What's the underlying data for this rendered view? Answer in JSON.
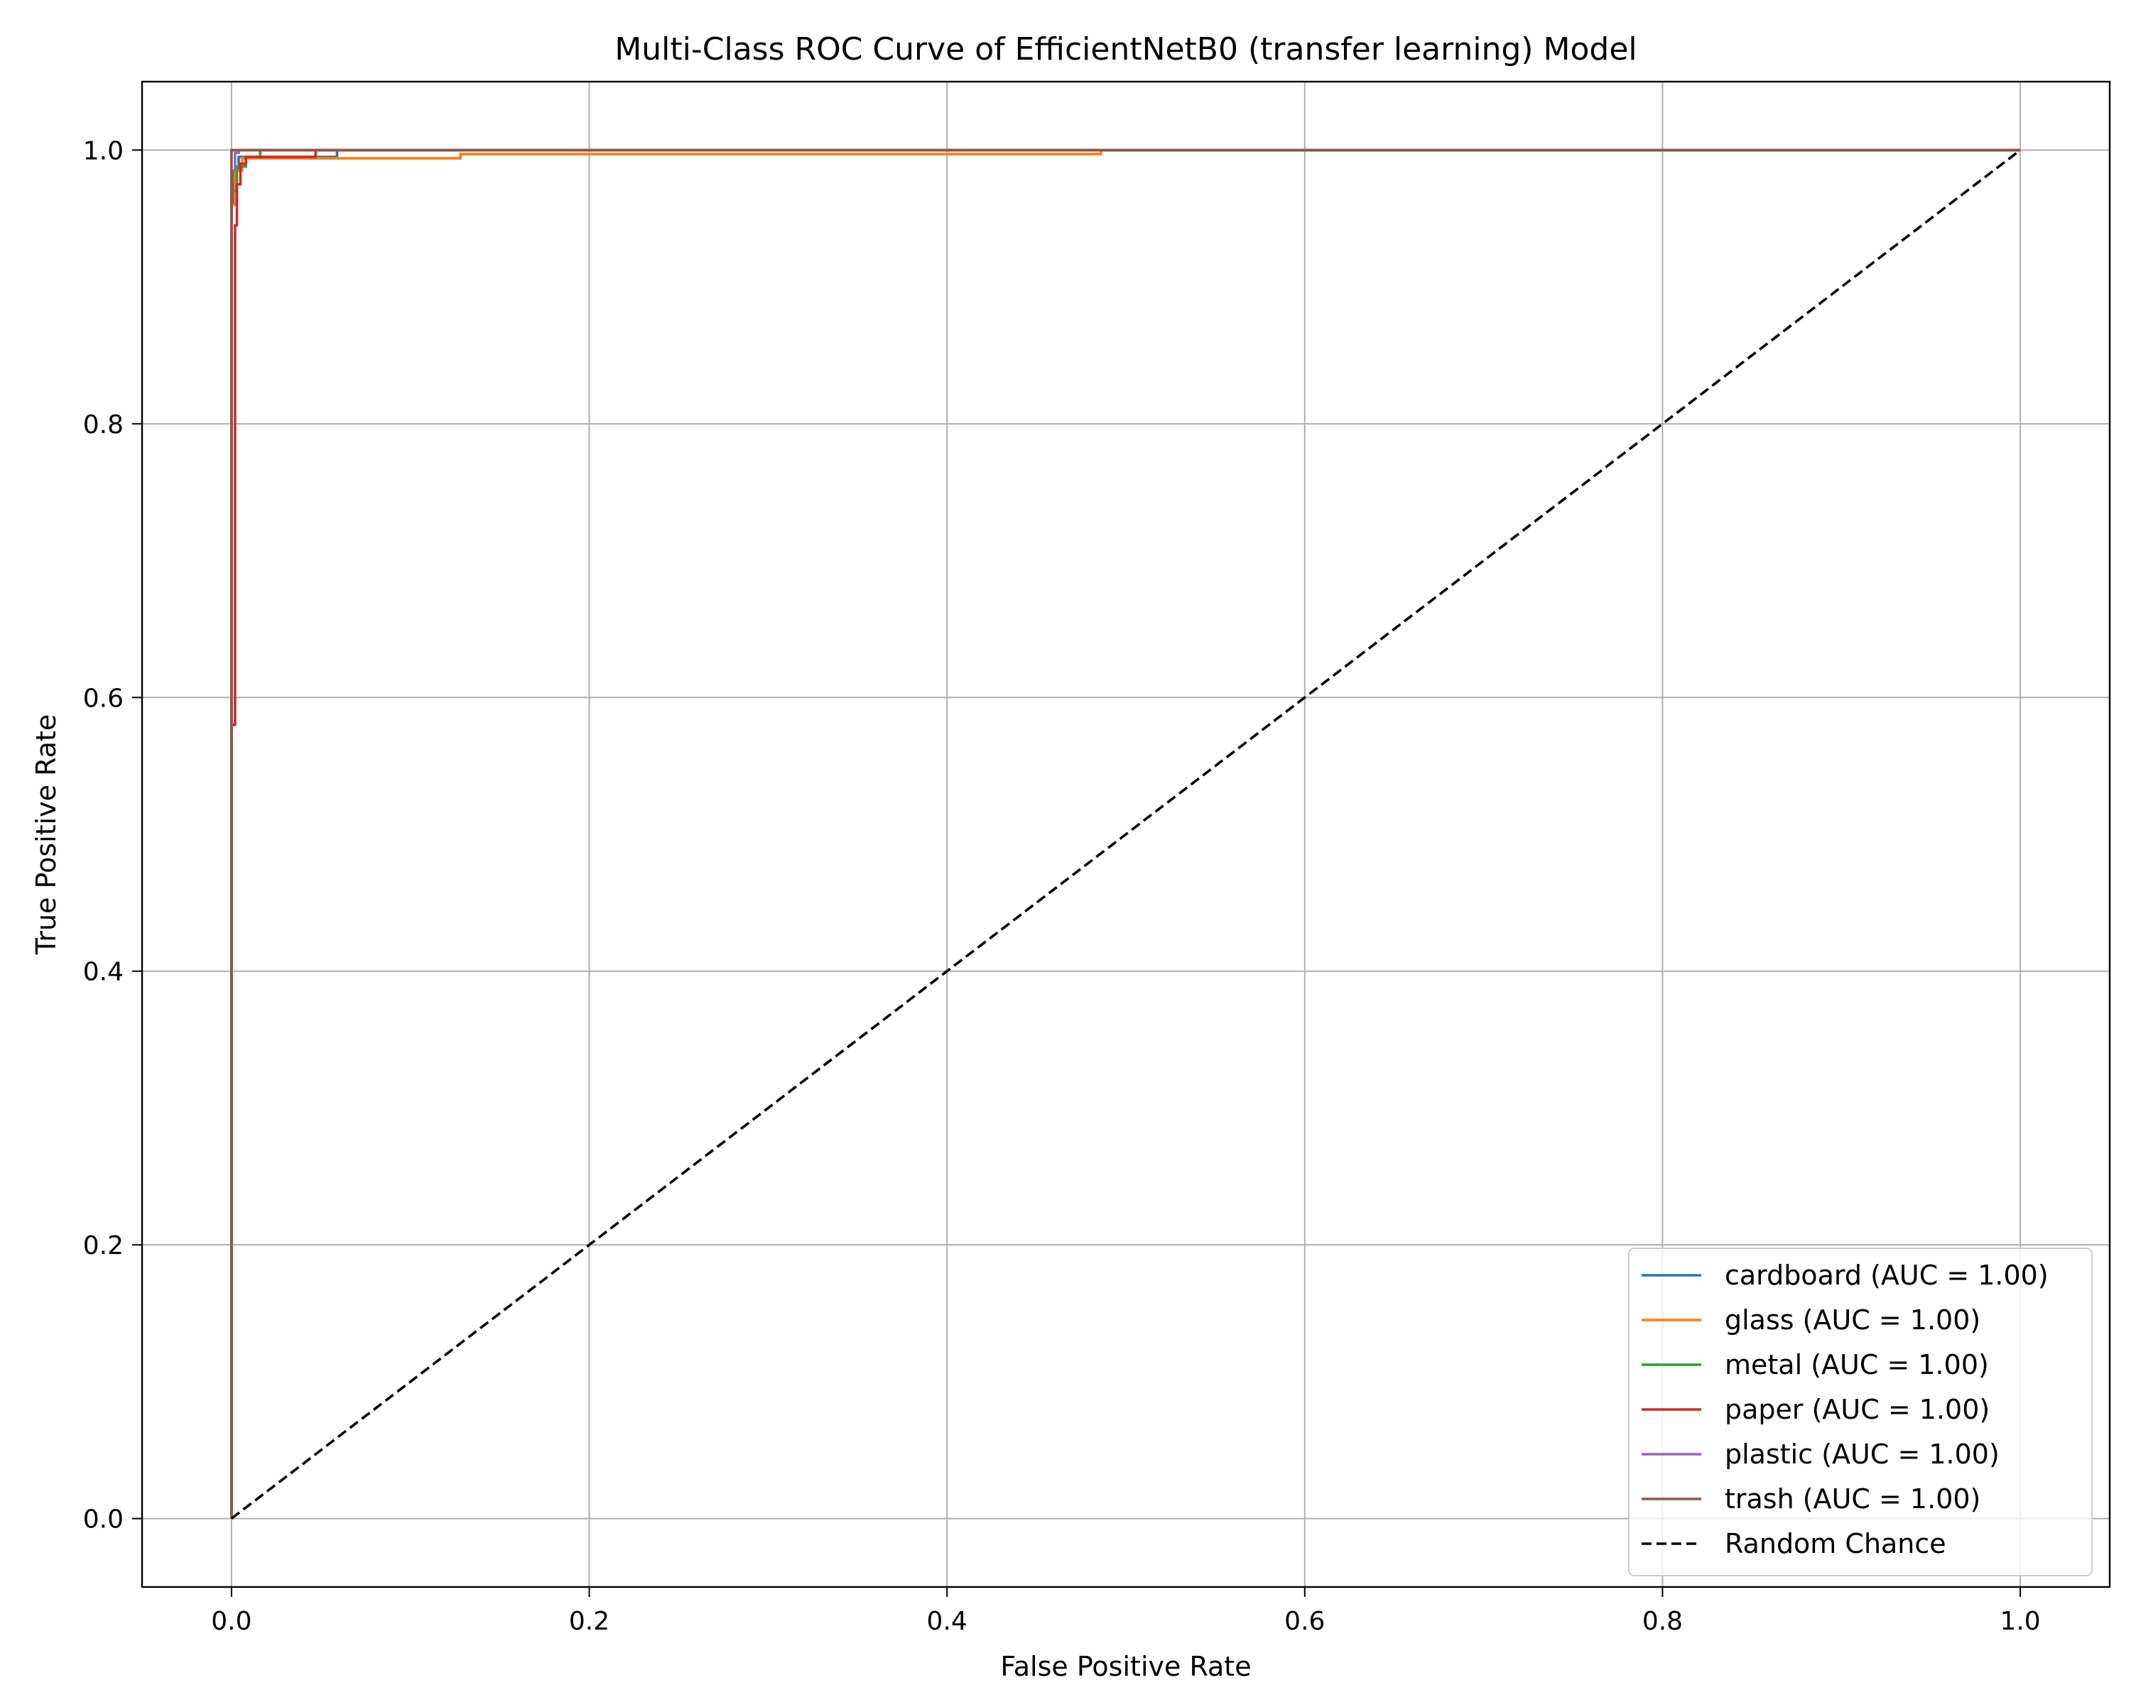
{
  "chart_data": {
    "type": "line",
    "title": "Multi-Class ROC Curve of EfficientNetB0 (transfer learning) Model",
    "xlabel": "False Positive Rate",
    "ylabel": "True Positive Rate",
    "xlim": [
      -0.05,
      1.05
    ],
    "ylim": [
      -0.05,
      1.05
    ],
    "xticks": [
      0.0,
      0.2,
      0.4,
      0.6,
      0.8,
      1.0
    ],
    "xtick_labels": [
      "0.0",
      "0.2",
      "0.4",
      "0.6",
      "0.8",
      "1.0"
    ],
    "yticks": [
      0.0,
      0.2,
      0.4,
      0.6,
      0.8,
      1.0
    ],
    "ytick_labels": [
      "0.0",
      "0.2",
      "0.4",
      "0.6",
      "0.8",
      "1.0"
    ],
    "grid": true,
    "legend_position": "lower-right",
    "series": [
      {
        "name": "cardboard (AUC = 1.00)",
        "color": "#1f77b4",
        "style": "solid",
        "x": [
          0.0,
          0.0,
          0.001,
          0.001,
          0.004,
          0.004,
          0.059,
          0.059,
          1.0
        ],
        "y": [
          0.0,
          0.96,
          0.96,
          0.985,
          0.985,
          0.995,
          0.995,
          1.0,
          1.0
        ]
      },
      {
        "name": "glass (AUC = 1.00)",
        "color": "#ff7f0e",
        "style": "solid",
        "x": [
          0.0,
          0.0,
          0.002,
          0.002,
          0.006,
          0.006,
          0.128,
          0.128,
          0.486,
          0.486,
          1.0
        ],
        "y": [
          0.0,
          0.96,
          0.96,
          0.985,
          0.985,
          0.994,
          0.994,
          0.997,
          0.997,
          1.0,
          1.0
        ]
      },
      {
        "name": "metal (AUC = 1.00)",
        "color": "#2ca02c",
        "style": "solid",
        "x": [
          0.0,
          0.0,
          0.003,
          0.003,
          0.008,
          0.008,
          0.016,
          0.016,
          1.0
        ],
        "y": [
          0.0,
          0.97,
          0.97,
          0.988,
          0.988,
          0.995,
          0.995,
          1.0,
          1.0
        ]
      },
      {
        "name": "paper (AUC = 1.00)",
        "color": "#d62728",
        "style": "solid",
        "x": [
          0.0,
          0.0,
          0.002,
          0.002,
          0.003,
          0.003,
          0.005,
          0.005,
          0.008,
          0.008,
          0.047,
          0.047,
          1.0
        ],
        "y": [
          0.0,
          0.58,
          0.58,
          0.945,
          0.945,
          0.975,
          0.975,
          0.99,
          0.99,
          0.995,
          0.995,
          1.0,
          1.0
        ]
      },
      {
        "name": "plastic (AUC = 1.00)",
        "color": "#9467bd",
        "style": "solid",
        "x": [
          0.0,
          0.0,
          0.002,
          0.002,
          0.004,
          0.004,
          1.0
        ],
        "y": [
          0.0,
          0.985,
          0.985,
          0.998,
          0.998,
          1.0,
          1.0
        ]
      },
      {
        "name": "trash (AUC = 1.00)",
        "color": "#8c564b",
        "style": "solid",
        "x": [
          0.0,
          0.0,
          1.0
        ],
        "y": [
          0.0,
          1.0,
          1.0
        ]
      },
      {
        "name": "Random Chance",
        "color": "#000000",
        "style": "dashed",
        "x": [
          0.0,
          1.0
        ],
        "y": [
          0.0,
          1.0
        ]
      }
    ]
  }
}
